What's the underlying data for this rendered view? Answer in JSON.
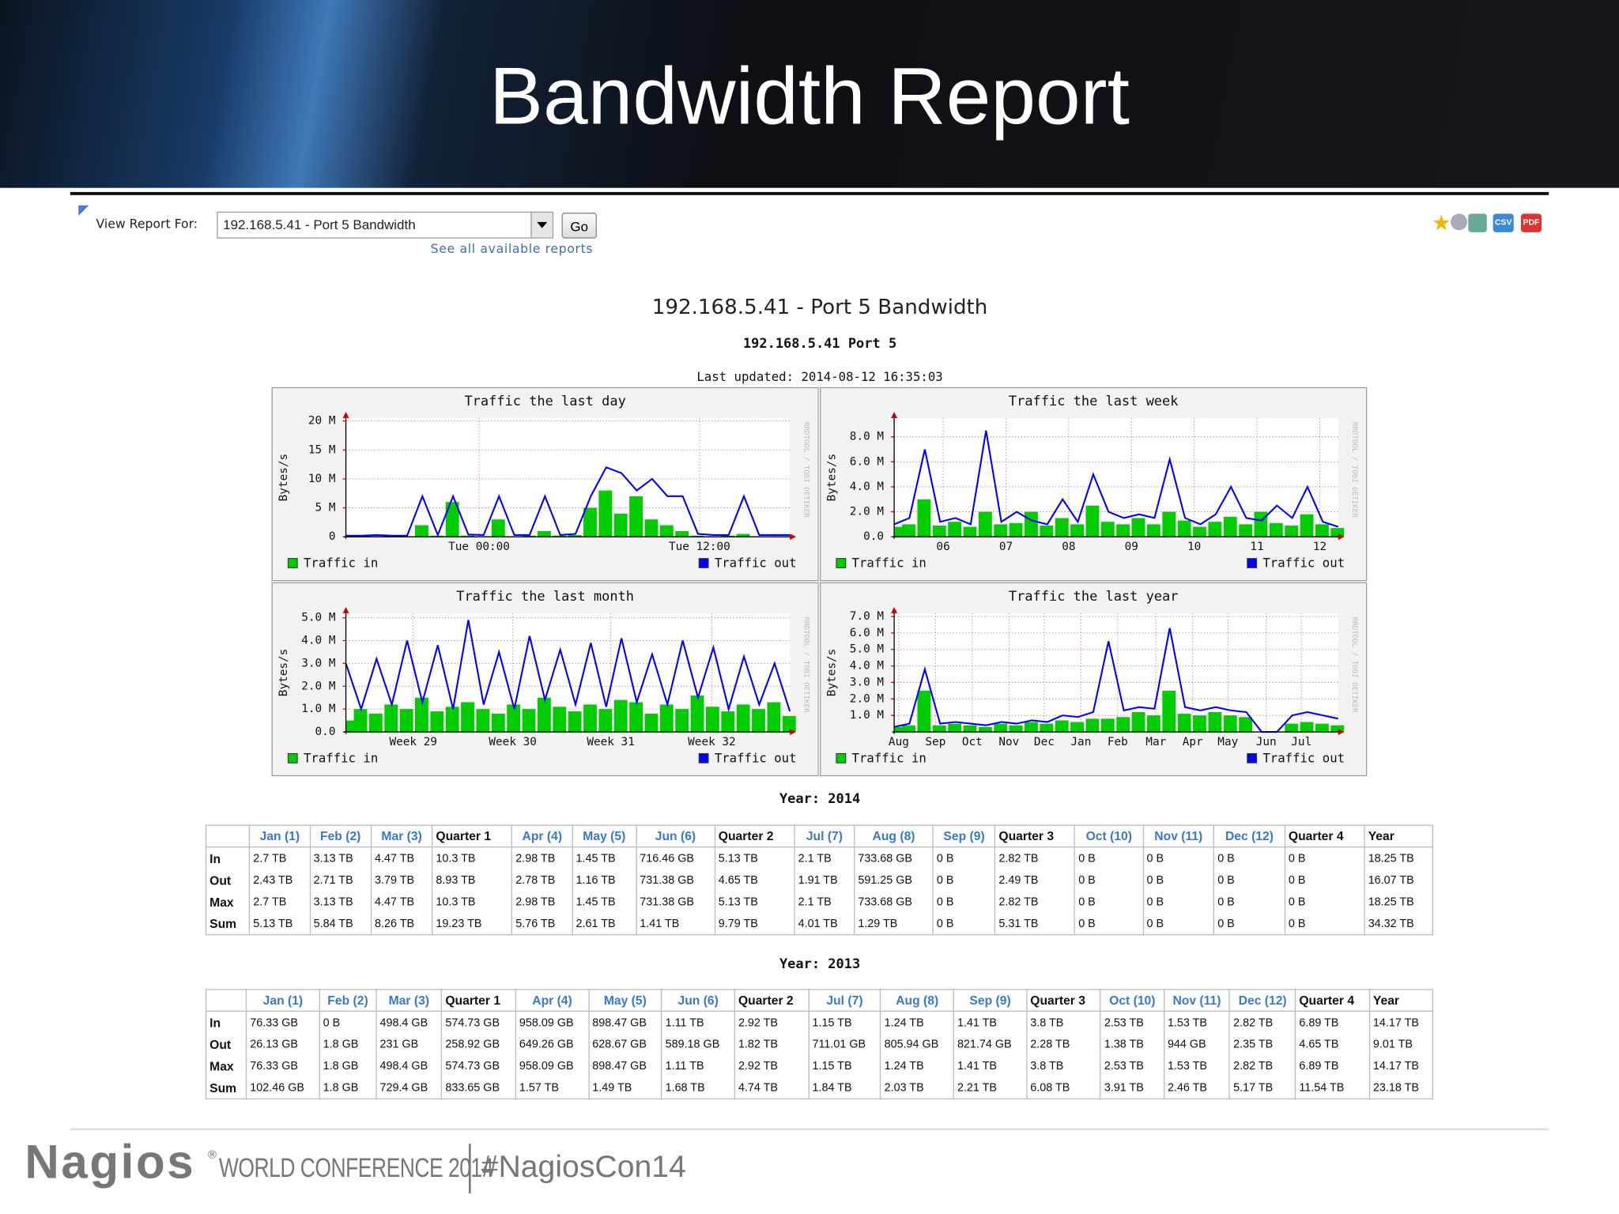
{
  "slide": {
    "title": "Bandwidth Report"
  },
  "toolbar": {
    "label": "View Report For:",
    "selected": "192.168.5.41 - Port 5 Bandwidth",
    "button": "Go",
    "link": "See all available reports",
    "icons": [
      "CSV",
      "PDF"
    ]
  },
  "report": {
    "title": "192.168.5.41 - Port 5 Bandwidth",
    "subtitle": "192.168.5.41 Port 5",
    "updated": "Last updated: 2014-08-12 16:35:03"
  },
  "graphs": [
    {
      "type": "rrd",
      "title": "Traffic the last day",
      "ylabel": "Bytes/s",
      "watermark": "RRDTOOL / TOBI OETIKER",
      "ylim": [
        0,
        20.5
      ],
      "yticks": [
        0,
        {
          "value": 5,
          "label": "5 M"
        },
        {
          "value": 10,
          "label": "10 M"
        },
        {
          "value": 15,
          "label": "15 M"
        },
        {
          "value": 20,
          "label": "20 M"
        }
      ],
      "xlim": [
        0,
        29
      ],
      "xticks": [
        {
          "value": 8.7,
          "label": "Tue 00:00"
        },
        {
          "value": 23.1,
          "label": "Tue 12:00"
        }
      ],
      "grid": true,
      "series": [
        {
          "name": "Traffic in",
          "color": "#00cc00",
          "values": [
            0.1,
            0.2,
            0.1,
            0.2,
            0.1,
            2,
            0.2,
            6,
            0.2,
            0.1,
            3,
            0.1,
            0.2,
            1,
            0.2,
            0.3,
            5,
            8,
            4,
            7,
            3,
            2,
            1,
            0.2,
            0.1,
            0.2,
            0.5,
            0.1,
            0.1,
            0.1
          ]
        },
        {
          "name": "Traffic out",
          "color": "#0000ff",
          "values": [
            0.2,
            0.2,
            0.3,
            0.2,
            0.2,
            7,
            0.3,
            7,
            0.4,
            0.3,
            7,
            0.3,
            0.3,
            7,
            0.3,
            0.5,
            7,
            12,
            11,
            8,
            10,
            7,
            7,
            0.5,
            0.3,
            0.3,
            7,
            0.3,
            0.3,
            0.3
          ]
        }
      ]
    },
    {
      "type": "rrd",
      "title": "Traffic the last week",
      "ylabel": "Bytes/s",
      "watermark": "RRDTOOL / TOBI OETIKER",
      "ylim": [
        0,
        9.5
      ],
      "yticks": [
        {
          "value": 0,
          "label": "0.0"
        },
        {
          "value": 2,
          "label": "2.0 M"
        },
        {
          "value": 4,
          "label": "4.0 M"
        },
        {
          "value": 6,
          "label": "6.0 M"
        },
        {
          "value": 8,
          "label": "8.0 M"
        }
      ],
      "xlim": [
        0,
        29
      ],
      "xticks": [
        {
          "value": 3.2,
          "label": "06"
        },
        {
          "value": 7.3,
          "label": "07"
        },
        {
          "value": 11.4,
          "label": "08"
        },
        {
          "value": 15.5,
          "label": "09"
        },
        {
          "value": 19.6,
          "label": "10"
        },
        {
          "value": 23.7,
          "label": "11"
        },
        {
          "value": 27.8,
          "label": "12"
        }
      ],
      "grid": true,
      "series": [
        {
          "name": "Traffic in",
          "color": "#00cc00",
          "values": [
            0.8,
            1,
            3,
            0.9,
            1.2,
            0.8,
            2,
            1,
            1.1,
            2,
            0.9,
            1.5,
            1,
            2.5,
            1.2,
            1,
            1.5,
            1,
            2,
            1.3,
            0.8,
            1.2,
            1.6,
            1,
            2,
            1.1,
            0.9,
            1.8,
            1,
            0.7
          ]
        },
        {
          "name": "Traffic out",
          "color": "#0000ff",
          "values": [
            1,
            1.5,
            7,
            1.2,
            1.5,
            1,
            8.5,
            1.2,
            2,
            1.3,
            1,
            3,
            1.2,
            5,
            2,
            1.5,
            1.8,
            1.5,
            6.2,
            1.5,
            1,
            1.8,
            4,
            1.5,
            1.3,
            2.5,
            1.5,
            4,
            1.2,
            0.8
          ]
        }
      ]
    },
    {
      "type": "rrd",
      "title": "Traffic the last month",
      "ylabel": "Bytes/s",
      "watermark": "RRDTOOL / TOBI OETIKER",
      "ylim": [
        0,
        5.2
      ],
      "yticks": [
        {
          "value": 0,
          "label": "0.0"
        },
        {
          "value": 1,
          "label": "1.0 M"
        },
        {
          "value": 2,
          "label": "2.0 M"
        },
        {
          "value": 3,
          "label": "3.0 M"
        },
        {
          "value": 4,
          "label": "4.0 M"
        },
        {
          "value": 5,
          "label": "5.0 M"
        }
      ],
      "xlim": [
        0,
        29
      ],
      "xticks": [
        {
          "value": 4.4,
          "label": "Week 29"
        },
        {
          "value": 10.9,
          "label": "Week 30"
        },
        {
          "value": 17.3,
          "label": "Week 31"
        },
        {
          "value": 23.9,
          "label": "Week 32"
        }
      ],
      "grid": true,
      "series": [
        {
          "name": "Traffic in",
          "color": "#00cc00",
          "values": [
            0.5,
            1,
            0.8,
            1.2,
            1,
            1.5,
            0.9,
            1.1,
            1.3,
            1,
            0.8,
            1.2,
            1,
            1.5,
            1.1,
            0.9,
            1.2,
            1,
            1.4,
            1.3,
            0.8,
            1.2,
            1,
            1.6,
            1.1,
            0.9,
            1.2,
            1,
            1.3,
            0.7
          ]
        },
        {
          "name": "Traffic out",
          "color": "#0000ff",
          "values": [
            3,
            1,
            3.2,
            1.2,
            4,
            1.3,
            3.8,
            1,
            4.9,
            1.2,
            3.5,
            1,
            4.2,
            1.4,
            3.6,
            1.2,
            3.9,
            1.1,
            4.1,
            1.3,
            3.4,
            1.2,
            4,
            1.5,
            3.7,
            1,
            3.3,
            1.2,
            3,
            0.9
          ]
        }
      ]
    },
    {
      "type": "rrd",
      "title": "Traffic the last year",
      "ylabel": "Bytes/s",
      "watermark": "RRDTOOL / TOBI OETIKER",
      "ylim": [
        0,
        7.2
      ],
      "yticks": [
        {
          "value": 1,
          "label": "1.0 M"
        },
        {
          "value": 2,
          "label": "2.0 M"
        },
        {
          "value": 3,
          "label": "3.0 M"
        },
        {
          "value": 4,
          "label": "4.0 M"
        },
        {
          "value": 5,
          "label": "5.0 M"
        },
        {
          "value": 6,
          "label": "6.0 M"
        },
        {
          "value": 7,
          "label": "7.0 M"
        }
      ],
      "xlim": [
        0,
        29
      ],
      "xticks": [
        {
          "value": 0.3,
          "label": "Aug"
        },
        {
          "value": 2.7,
          "label": "Sep"
        },
        {
          "value": 5.1,
          "label": "Oct"
        },
        {
          "value": 7.5,
          "label": "Nov"
        },
        {
          "value": 9.8,
          "label": "Dec"
        },
        {
          "value": 12.2,
          "label": "Jan"
        },
        {
          "value": 14.6,
          "label": "Feb"
        },
        {
          "value": 17.1,
          "label": "Mar"
        },
        {
          "value": 19.5,
          "label": "Apr"
        },
        {
          "value": 21.8,
          "label": "May"
        },
        {
          "value": 24.3,
          "label": "Jun"
        },
        {
          "value": 26.6,
          "label": "Jul"
        }
      ],
      "grid": true,
      "series": [
        {
          "name": "Traffic in",
          "color": "#00cc00",
          "values": [
            0.3,
            0.4,
            2.5,
            0.4,
            0.5,
            0.4,
            0.3,
            0.5,
            0.4,
            0.6,
            0.5,
            0.7,
            0.6,
            0.8,
            0.8,
            0.9,
            1.2,
            1,
            2.5,
            1.1,
            1,
            1.2,
            1,
            0.9,
            0,
            0,
            0.5,
            0.6,
            0.5,
            0.4
          ]
        },
        {
          "name": "Traffic out",
          "color": "#0000ff",
          "values": [
            0.3,
            0.5,
            3.8,
            0.5,
            0.6,
            0.5,
            0.4,
            0.6,
            0.5,
            0.7,
            0.6,
            1,
            0.9,
            1.2,
            5.5,
            1.3,
            1.5,
            1.4,
            6.3,
            1.5,
            1.3,
            1.5,
            1.3,
            1.2,
            0,
            0,
            1,
            1.2,
            1,
            0.8
          ]
        }
      ]
    }
  ],
  "tables": [
    {
      "title": "Year: 2014",
      "header": [
        "Jan (1)",
        "Feb (2)",
        "Mar (3)",
        "Quarter 1",
        "Apr (4)",
        "May (5)",
        "Jun (6)",
        "Quarter 2",
        "Jul (7)",
        "Aug (8)",
        "Sep (9)",
        "Quarter 3",
        "Oct (10)",
        "Nov (11)",
        "Dec (12)",
        "Quarter 4",
        "Year"
      ],
      "rows": [
        {
          "label": "In",
          "cells": [
            "2.7 TB",
            "3.13 TB",
            "4.47 TB",
            "10.3 TB",
            "2.98 TB",
            "1.45 TB",
            "716.46 GB",
            "5.13 TB",
            "2.1 TB",
            "733.68 GB",
            "0 B",
            "2.82 TB",
            "0 B",
            "0 B",
            "0 B",
            "0 B",
            "18.25 TB"
          ]
        },
        {
          "label": "Out",
          "cells": [
            "2.43 TB",
            "2.71 TB",
            "3.79 TB",
            "8.93 TB",
            "2.78 TB",
            "1.16 TB",
            "731.38 GB",
            "4.65 TB",
            "1.91 TB",
            "591.25 GB",
            "0 B",
            "2.49 TB",
            "0 B",
            "0 B",
            "0 B",
            "0 B",
            "16.07 TB"
          ]
        },
        {
          "label": "Max",
          "cells": [
            "2.7 TB",
            "3.13 TB",
            "4.47 TB",
            "10.3 TB",
            "2.98 TB",
            "1.45 TB",
            "731.38 GB",
            "5.13 TB",
            "2.1 TB",
            "733.68 GB",
            "0 B",
            "2.82 TB",
            "0 B",
            "0 B",
            "0 B",
            "0 B",
            "18.25 TB"
          ]
        },
        {
          "label": "Sum",
          "cells": [
            "5.13 TB",
            "5.84 TB",
            "8.26 TB",
            "19.23 TB",
            "5.76 TB",
            "2.61 TB",
            "1.41 TB",
            "9.79 TB",
            "4.01 TB",
            "1.29 TB",
            "0 B",
            "5.31 TB",
            "0 B",
            "0 B",
            "0 B",
            "0 B",
            "34.32 TB"
          ]
        }
      ]
    },
    {
      "title": "Year: 2013",
      "header": [
        "Jan (1)",
        "Feb (2)",
        "Mar (3)",
        "Quarter 1",
        "Apr (4)",
        "May (5)",
        "Jun (6)",
        "Quarter 2",
        "Jul (7)",
        "Aug (8)",
        "Sep (9)",
        "Quarter 3",
        "Oct (10)",
        "Nov (11)",
        "Dec (12)",
        "Quarter 4",
        "Year"
      ],
      "rows": [
        {
          "label": "In",
          "cells": [
            "76.33 GB",
            "0 B",
            "498.4 GB",
            "574.73 GB",
            "958.09 GB",
            "898.47 GB",
            "1.11 TB",
            "2.92 TB",
            "1.15 TB",
            "1.24 TB",
            "1.41 TB",
            "3.8 TB",
            "2.53 TB",
            "1.53 TB",
            "2.82 TB",
            "6.89 TB",
            "14.17 TB"
          ]
        },
        {
          "label": "Out",
          "cells": [
            "26.13 GB",
            "1.8 GB",
            "231 GB",
            "258.92 GB",
            "649.26 GB",
            "628.67 GB",
            "589.18 GB",
            "1.82 TB",
            "711.01 GB",
            "805.94 GB",
            "821.74 GB",
            "2.28 TB",
            "1.38 TB",
            "944 GB",
            "2.35 TB",
            "4.65 TB",
            "9.01 TB"
          ]
        },
        {
          "label": "Max",
          "cells": [
            "76.33 GB",
            "1.8 GB",
            "498.4 GB",
            "574.73 GB",
            "958.09 GB",
            "898.47 GB",
            "1.11 TB",
            "2.92 TB",
            "1.15 TB",
            "1.24 TB",
            "1.41 TB",
            "3.8 TB",
            "2.53 TB",
            "1.53 TB",
            "2.82 TB",
            "6.89 TB",
            "14.17 TB"
          ]
        },
        {
          "label": "Sum",
          "cells": [
            "102.46 GB",
            "1.8 GB",
            "729.4 GB",
            "833.65 GB",
            "1.57 TB",
            "1.49 TB",
            "1.68 TB",
            "4.74 TB",
            "1.84 TB",
            "2.03 TB",
            "2.21 TB",
            "6.08 TB",
            "3.91 TB",
            "2.46 TB",
            "5.17 TB",
            "11.54 TB",
            "23.18 TB"
          ]
        }
      ]
    }
  ],
  "footer": {
    "brand": "Nagios",
    "registered": "®",
    "conference": "WORLD CONFERENCE 2014",
    "hashtag": "#NagiosCon14"
  }
}
